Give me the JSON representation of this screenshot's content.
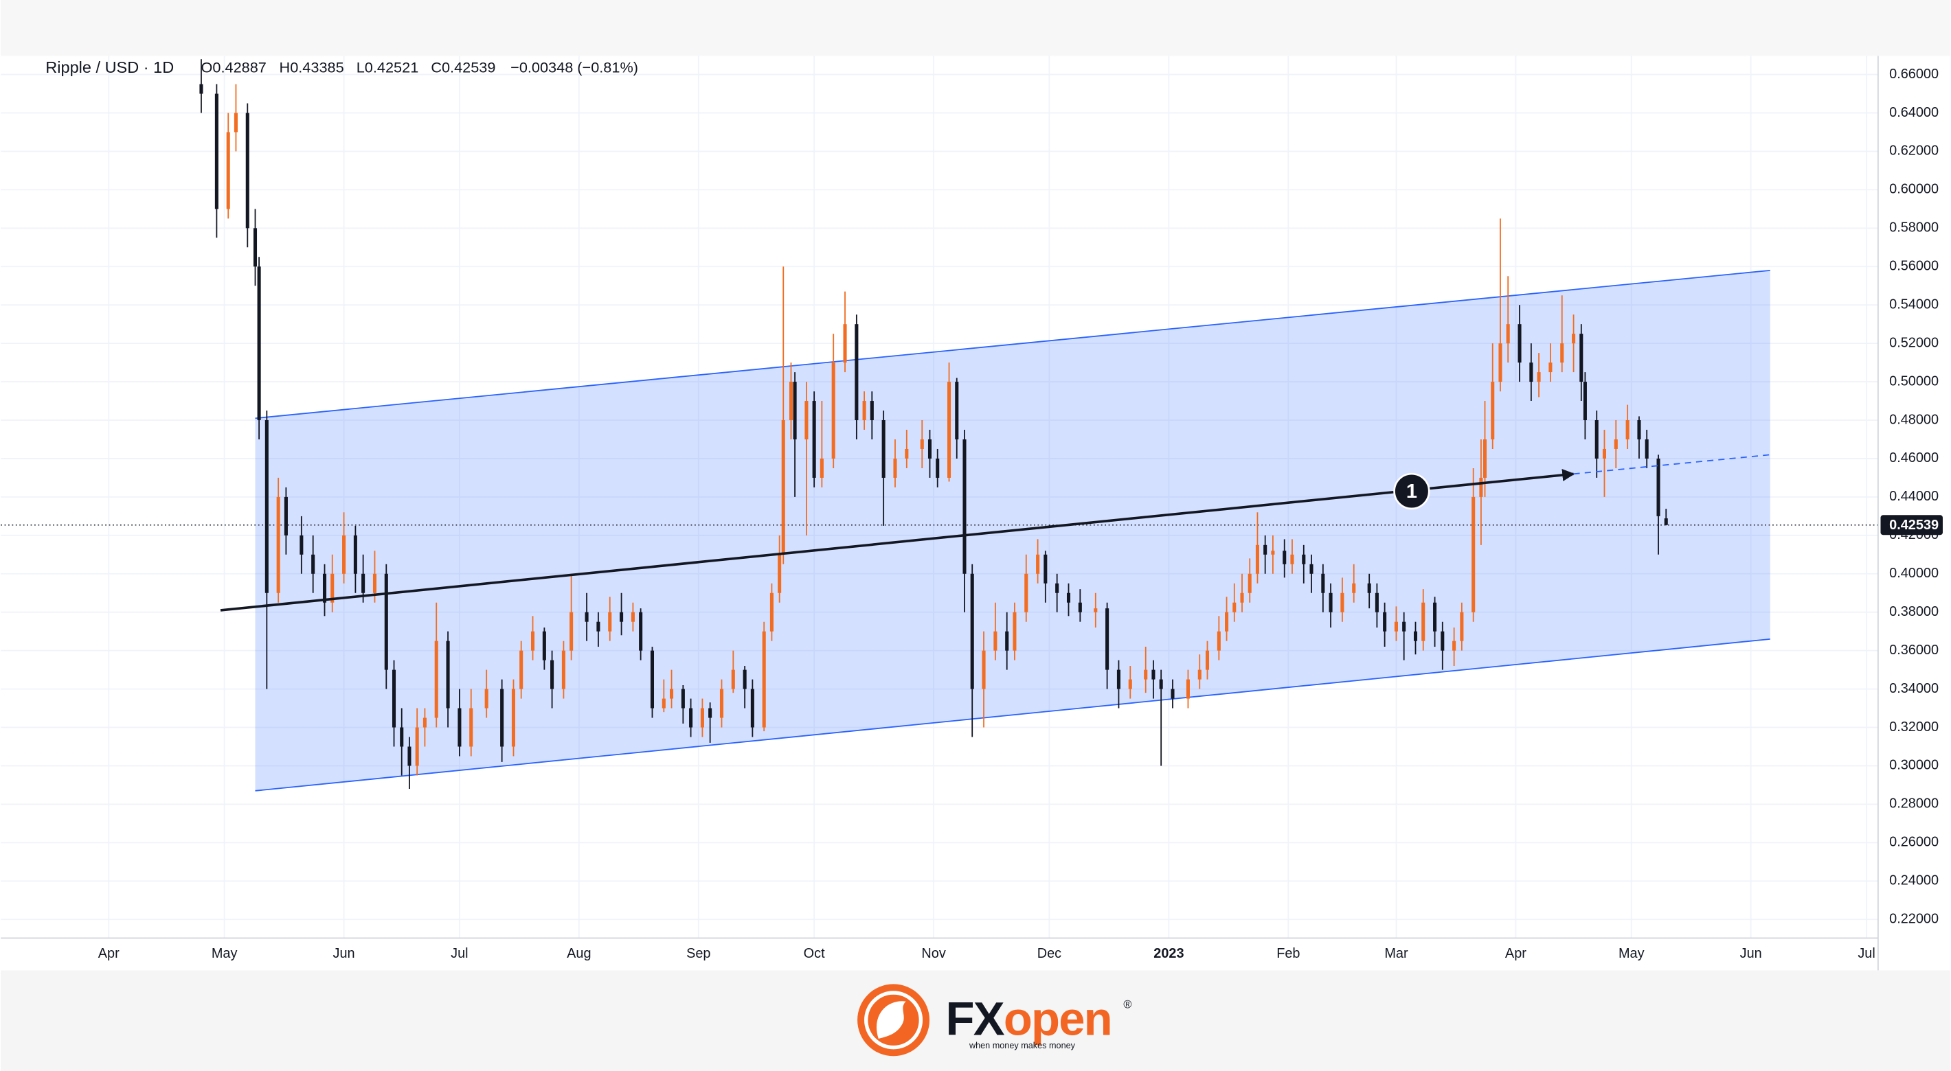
{
  "header": {
    "symbol": "Ripple / USD · 1D",
    "open": "O0.42887",
    "high": "H0.43385",
    "low": "L0.42521",
    "close": "C0.42539",
    "change": "−0.00348 (−0.81%)"
  },
  "chart_data": {
    "type": "candlestick",
    "up_color": "#f26d21",
    "down_color": "#131722",
    "grid": true,
    "xlim": [
      -28,
      459
    ],
    "ylim": [
      0.2103,
      0.6697
    ],
    "xticks": [
      {
        "value": 0,
        "label": "Apr"
      },
      {
        "value": 30,
        "label": "May"
      },
      {
        "value": 61,
        "label": "Jun"
      },
      {
        "value": 91,
        "label": "Jul"
      },
      {
        "value": 122,
        "label": "Aug"
      },
      {
        "value": 153,
        "label": "Sep"
      },
      {
        "value": 183,
        "label": "Oct"
      },
      {
        "value": 214,
        "label": "Nov"
      },
      {
        "value": 244,
        "label": "Dec"
      },
      {
        "value": 275,
        "label": "2023"
      },
      {
        "value": 306,
        "label": "Feb"
      },
      {
        "value": 334,
        "label": "Mar"
      },
      {
        "value": 365,
        "label": "Apr"
      },
      {
        "value": 395,
        "label": "May"
      },
      {
        "value": 426,
        "label": "Jun"
      },
      {
        "value": 456,
        "label": "Jul"
      }
    ],
    "yticks": [
      {
        "value": 0.22,
        "label": "0.22000"
      },
      {
        "value": 0.24,
        "label": "0.24000"
      },
      {
        "value": 0.26,
        "label": "0.26000"
      },
      {
        "value": 0.28,
        "label": "0.28000"
      },
      {
        "value": 0.3,
        "label": "0.30000"
      },
      {
        "value": 0.32,
        "label": "0.32000"
      },
      {
        "value": 0.34,
        "label": "0.34000"
      },
      {
        "value": 0.36,
        "label": "0.36000"
      },
      {
        "value": 0.38,
        "label": "0.38000"
      },
      {
        "value": 0.4,
        "label": "0.40000"
      },
      {
        "value": 0.42,
        "label": "0.42000"
      },
      {
        "value": 0.44,
        "label": "0.44000"
      },
      {
        "value": 0.46,
        "label": "0.46000"
      },
      {
        "value": 0.48,
        "label": "0.48000"
      },
      {
        "value": 0.5,
        "label": "0.50000"
      },
      {
        "value": 0.52,
        "label": "0.52000"
      },
      {
        "value": 0.54,
        "label": "0.54000"
      },
      {
        "value": 0.56,
        "label": "0.56000"
      },
      {
        "value": 0.58,
        "label": "0.58000"
      },
      {
        "value": 0.6,
        "label": "0.60000"
      },
      {
        "value": 0.62,
        "label": "0.62000"
      },
      {
        "value": 0.64,
        "label": "0.64000"
      },
      {
        "value": 0.66,
        "label": "0.66000"
      }
    ],
    "x": [
      24,
      28,
      31,
      33,
      36,
      38,
      39,
      41,
      44,
      46,
      50,
      53,
      56,
      58,
      61,
      64,
      66,
      69,
      72,
      74,
      76,
      78,
      80,
      82,
      85,
      88,
      91,
      94,
      98,
      102,
      105,
      107,
      110,
      113,
      115,
      118,
      120,
      124,
      127,
      130,
      133,
      136,
      138,
      141,
      144,
      146,
      149,
      151,
      154,
      156,
      159,
      162,
      165,
      167,
      170,
      172,
      174,
      175,
      177,
      178,
      181,
      183,
      185,
      188,
      191,
      194,
      196,
      198,
      201,
      204,
      207,
      211,
      213,
      215,
      218,
      220,
      222,
      224,
      227,
      230,
      233,
      235,
      238,
      241,
      243,
      246,
      249,
      252,
      256,
      259,
      262,
      265,
      269,
      271,
      273,
      276,
      280,
      283,
      285,
      288,
      290,
      292,
      294,
      296,
      298,
      300,
      302,
      305,
      307,
      310,
      312,
      315,
      317,
      320,
      323,
      327,
      329,
      331,
      334,
      336,
      339,
      341,
      344,
      346,
      349,
      351,
      354,
      356,
      357,
      359,
      361,
      363,
      366,
      369,
      371,
      374,
      377,
      380,
      382,
      383,
      386,
      388,
      391,
      394,
      397,
      399,
      402,
      404
    ],
    "open": [
      0.655,
      0.65,
      0.59,
      0.63,
      0.64,
      0.58,
      0.56,
      0.48,
      0.39,
      0.44,
      0.42,
      0.41,
      0.4,
      0.385,
      0.4,
      0.42,
      0.4,
      0.39,
      0.4,
      0.35,
      0.32,
      0.31,
      0.3,
      0.32,
      0.325,
      0.365,
      0.33,
      0.31,
      0.33,
      0.34,
      0.31,
      0.34,
      0.36,
      0.37,
      0.355,
      0.34,
      0.36,
      0.38,
      0.375,
      0.37,
      0.38,
      0.375,
      0.38,
      0.36,
      0.33,
      0.335,
      0.34,
      0.33,
      0.32,
      0.33,
      0.325,
      0.34,
      0.35,
      0.34,
      0.32,
      0.37,
      0.39,
      0.41,
      0.48,
      0.5,
      0.47,
      0.49,
      0.45,
      0.46,
      0.51,
      0.53,
      0.48,
      0.49,
      0.48,
      0.45,
      0.46,
      0.465,
      0.47,
      0.46,
      0.45,
      0.5,
      0.47,
      0.4,
      0.34,
      0.36,
      0.37,
      0.36,
      0.38,
      0.4,
      0.41,
      0.395,
      0.39,
      0.385,
      0.38,
      0.382,
      0.35,
      0.34,
      0.345,
      0.35,
      0.345,
      0.34,
      0.335,
      0.345,
      0.35,
      0.36,
      0.37,
      0.38,
      0.385,
      0.39,
      0.4,
      0.415,
      0.41,
      0.412,
      0.405,
      0.41,
      0.405,
      0.4,
      0.39,
      0.38,
      0.39,
      0.395,
      0.39,
      0.38,
      0.37,
      0.375,
      0.37,
      0.365,
      0.385,
      0.37,
      0.36,
      0.365,
      0.38,
      0.44,
      0.45,
      0.47,
      0.5,
      0.52,
      0.53,
      0.51,
      0.5,
      0.505,
      0.51,
      0.52,
      0.525,
      0.5,
      0.48,
      0.46,
      0.465,
      0.47,
      0.48,
      0.47,
      0.46,
      0.42887
    ],
    "high": [
      0.668,
      0.655,
      0.64,
      0.655,
      0.645,
      0.59,
      0.565,
      0.485,
      0.45,
      0.445,
      0.43,
      0.42,
      0.405,
      0.41,
      0.432,
      0.425,
      0.41,
      0.412,
      0.405,
      0.355,
      0.33,
      0.315,
      0.33,
      0.33,
      0.385,
      0.37,
      0.34,
      0.34,
      0.35,
      0.345,
      0.345,
      0.365,
      0.378,
      0.372,
      0.36,
      0.365,
      0.4,
      0.39,
      0.38,
      0.388,
      0.39,
      0.385,
      0.382,
      0.362,
      0.345,
      0.35,
      0.342,
      0.335,
      0.335,
      0.333,
      0.345,
      0.36,
      0.352,
      0.345,
      0.375,
      0.395,
      0.42,
      0.56,
      0.51,
      0.505,
      0.5,
      0.495,
      0.49,
      0.525,
      0.547,
      0.535,
      0.495,
      0.495,
      0.485,
      0.47,
      0.475,
      0.48,
      0.475,
      0.465,
      0.51,
      0.502,
      0.475,
      0.405,
      0.37,
      0.385,
      0.38,
      0.385,
      0.41,
      0.418,
      0.412,
      0.4,
      0.395,
      0.392,
      0.39,
      0.385,
      0.355,
      0.352,
      0.362,
      0.355,
      0.35,
      0.345,
      0.35,
      0.358,
      0.365,
      0.378,
      0.388,
      0.395,
      0.4,
      0.408,
      0.432,
      0.42,
      0.42,
      0.418,
      0.418,
      0.415,
      0.41,
      0.405,
      0.395,
      0.398,
      0.405,
      0.4,
      0.395,
      0.385,
      0.383,
      0.38,
      0.375,
      0.392,
      0.388,
      0.375,
      0.372,
      0.385,
      0.455,
      0.47,
      0.49,
      0.52,
      0.585,
      0.555,
      0.54,
      0.52,
      0.515,
      0.52,
      0.545,
      0.535,
      0.53,
      0.505,
      0.485,
      0.475,
      0.48,
      0.488,
      0.482,
      0.475,
      0.462,
      0.43385
    ],
    "low": [
      0.64,
      0.575,
      0.585,
      0.62,
      0.57,
      0.55,
      0.47,
      0.34,
      0.385,
      0.41,
      0.4,
      0.39,
      0.378,
      0.38,
      0.395,
      0.39,
      0.385,
      0.385,
      0.34,
      0.31,
      0.295,
      0.288,
      0.295,
      0.31,
      0.32,
      0.32,
      0.305,
      0.305,
      0.325,
      0.302,
      0.305,
      0.335,
      0.355,
      0.35,
      0.33,
      0.335,
      0.355,
      0.365,
      0.362,
      0.365,
      0.368,
      0.37,
      0.355,
      0.325,
      0.328,
      0.33,
      0.322,
      0.315,
      0.315,
      0.312,
      0.32,
      0.338,
      0.33,
      0.315,
      0.318,
      0.365,
      0.385,
      0.405,
      0.47,
      0.44,
      0.42,
      0.445,
      0.445,
      0.455,
      0.505,
      0.47,
      0.475,
      0.47,
      0.425,
      0.445,
      0.455,
      0.455,
      0.45,
      0.445,
      0.448,
      0.46,
      0.38,
      0.315,
      0.32,
      0.355,
      0.35,
      0.355,
      0.375,
      0.395,
      0.385,
      0.38,
      0.378,
      0.375,
      0.372,
      0.34,
      0.33,
      0.335,
      0.338,
      0.335,
      0.3,
      0.33,
      0.33,
      0.34,
      0.345,
      0.355,
      0.365,
      0.375,
      0.38,
      0.385,
      0.395,
      0.4,
      0.4,
      0.398,
      0.4,
      0.395,
      0.39,
      0.38,
      0.372,
      0.375,
      0.385,
      0.382,
      0.372,
      0.362,
      0.365,
      0.355,
      0.358,
      0.36,
      0.362,
      0.35,
      0.352,
      0.36,
      0.375,
      0.415,
      0.44,
      0.465,
      0.495,
      0.51,
      0.5,
      0.49,
      0.492,
      0.5,
      0.505,
      0.505,
      0.49,
      0.47,
      0.45,
      0.44,
      0.455,
      0.465,
      0.46,
      0.455,
      0.41,
      0.42521
    ],
    "close": [
      0.65,
      0.59,
      0.63,
      0.64,
      0.58,
      0.56,
      0.48,
      0.39,
      0.44,
      0.42,
      0.41,
      0.4,
      0.385,
      0.4,
      0.42,
      0.4,
      0.39,
      0.4,
      0.35,
      0.32,
      0.31,
      0.3,
      0.32,
      0.325,
      0.365,
      0.33,
      0.31,
      0.33,
      0.34,
      0.31,
      0.34,
      0.36,
      0.37,
      0.355,
      0.34,
      0.36,
      0.38,
      0.375,
      0.37,
      0.38,
      0.375,
      0.38,
      0.36,
      0.33,
      0.335,
      0.34,
      0.33,
      0.32,
      0.33,
      0.325,
      0.34,
      0.35,
      0.34,
      0.32,
      0.37,
      0.39,
      0.41,
      0.48,
      0.5,
      0.47,
      0.49,
      0.45,
      0.46,
      0.51,
      0.53,
      0.48,
      0.49,
      0.48,
      0.45,
      0.46,
      0.465,
      0.47,
      0.46,
      0.45,
      0.5,
      0.47,
      0.4,
      0.34,
      0.36,
      0.37,
      0.36,
      0.38,
      0.4,
      0.41,
      0.395,
      0.39,
      0.385,
      0.38,
      0.382,
      0.35,
      0.34,
      0.345,
      0.35,
      0.345,
      0.34,
      0.335,
      0.345,
      0.35,
      0.36,
      0.37,
      0.38,
      0.385,
      0.39,
      0.4,
      0.415,
      0.41,
      0.412,
      0.405,
      0.41,
      0.405,
      0.4,
      0.39,
      0.38,
      0.39,
      0.395,
      0.39,
      0.38,
      0.37,
      0.375,
      0.37,
      0.365,
      0.385,
      0.37,
      0.36,
      0.365,
      0.38,
      0.44,
      0.45,
      0.47,
      0.5,
      0.52,
      0.53,
      0.51,
      0.5,
      0.505,
      0.51,
      0.52,
      0.525,
      0.5,
      0.48,
      0.46,
      0.465,
      0.47,
      0.48,
      0.47,
      0.46,
      0.43,
      0.42539
    ],
    "last_price": {
      "value": 0.42539,
      "label": "0.42539"
    },
    "channel": {
      "color": "#2962ff",
      "upper": {
        "x": [
          38,
          431
        ],
        "y": [
          0.481,
          0.558
        ]
      },
      "lower": {
        "x": [
          38,
          431
        ],
        "y": [
          0.287,
          0.366
        ]
      }
    },
    "trend_line": {
      "x": [
        29,
        380
      ],
      "y": [
        0.381,
        0.452
      ]
    },
    "trend_extension": {
      "x": [
        380,
        431
      ],
      "y": [
        0.452,
        0.462
      ]
    },
    "marker": {
      "x": 338,
      "y": 0.443,
      "label": "1"
    }
  },
  "branding": {
    "name_fx": "FX",
    "name_open": "open",
    "registered": "®",
    "tagline": "when money makes money"
  }
}
